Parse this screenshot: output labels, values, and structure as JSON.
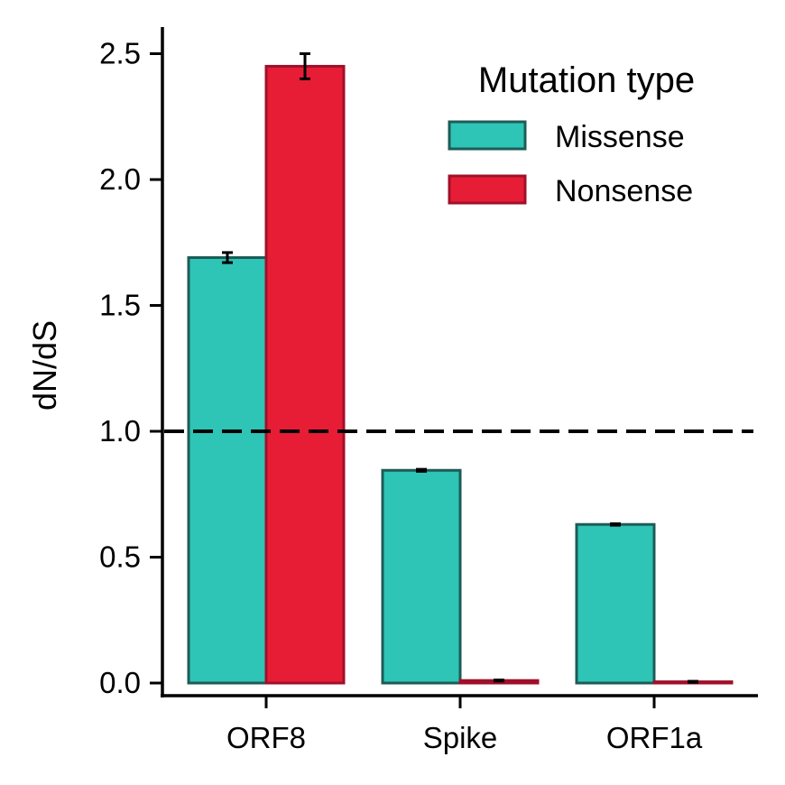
{
  "chart_data": {
    "type": "bar",
    "categories": [
      "ORF8",
      "Spike",
      "ORF1a"
    ],
    "series": [
      {
        "name": "Missense",
        "values": [
          1.69,
          0.845,
          0.63
        ],
        "errors": [
          0.02,
          0.004,
          0.003
        ],
        "color": "#2ec4b6",
        "edge_color": "#1d5c57"
      },
      {
        "name": "Nonsense",
        "values": [
          2.45,
          0.01,
          0.005
        ],
        "errors": [
          0.05,
          0.002,
          0.002
        ],
        "color": "#e71d36",
        "edge_color": "#a0102a"
      }
    ],
    "xlabel": "",
    "ylabel": "dN/dS",
    "ylim": [
      -0.05,
      2.6
    ],
    "yticks": [
      0.0,
      0.5,
      1.0,
      1.5,
      2.0,
      2.5
    ],
    "ytick_labels": [
      "0.0",
      "0.5",
      "1.0",
      "1.5",
      "2.0",
      "2.5"
    ],
    "reference_line": {
      "y": 1.0,
      "style": "dashed",
      "color": "#000000"
    },
    "legend": {
      "title": "Mutation type",
      "placement": "top-right"
    },
    "grid": false
  }
}
